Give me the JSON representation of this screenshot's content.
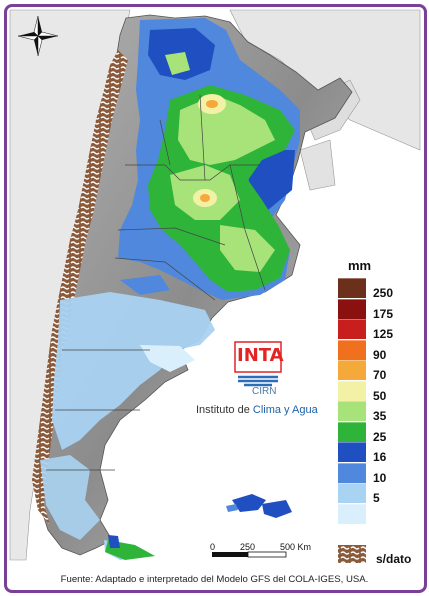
{
  "legend": {
    "unit": "mm",
    "items": [
      {
        "label": "250",
        "color": "#6b2f1b"
      },
      {
        "label": "175",
        "color": "#8b1010"
      },
      {
        "label": "125",
        "color": "#c81e1e"
      },
      {
        "label": "90",
        "color": "#f07020"
      },
      {
        "label": "70",
        "color": "#f5a93a"
      },
      {
        "label": "50",
        "color": "#f3f1a6"
      },
      {
        "label": "35",
        "color": "#a8e37a"
      },
      {
        "label": "25",
        "color": "#2fb43a"
      },
      {
        "label": "16",
        "color": "#1f4fc0"
      },
      {
        "label": "10",
        "color": "#4f88dc"
      },
      {
        "label": "5",
        "color": "#a9d3f2"
      },
      {
        "label": "",
        "color": "#d9f0fc"
      }
    ],
    "no_data_label": "s/dato",
    "no_data_color": "#8a5a3a"
  },
  "scale_bar": {
    "labels": [
      "0",
      "250",
      "500 Km"
    ]
  },
  "logo": {
    "name": "INTA",
    "sub": "CIRN",
    "institute_prefix": "Instituto de ",
    "institute_highlight": "Clima y Agua"
  },
  "source": "Fuente: Adaptado e interpretado del Modelo GFS del COLA-IGES, USA.",
  "icons": {
    "compass": "compass-rose-icon"
  }
}
